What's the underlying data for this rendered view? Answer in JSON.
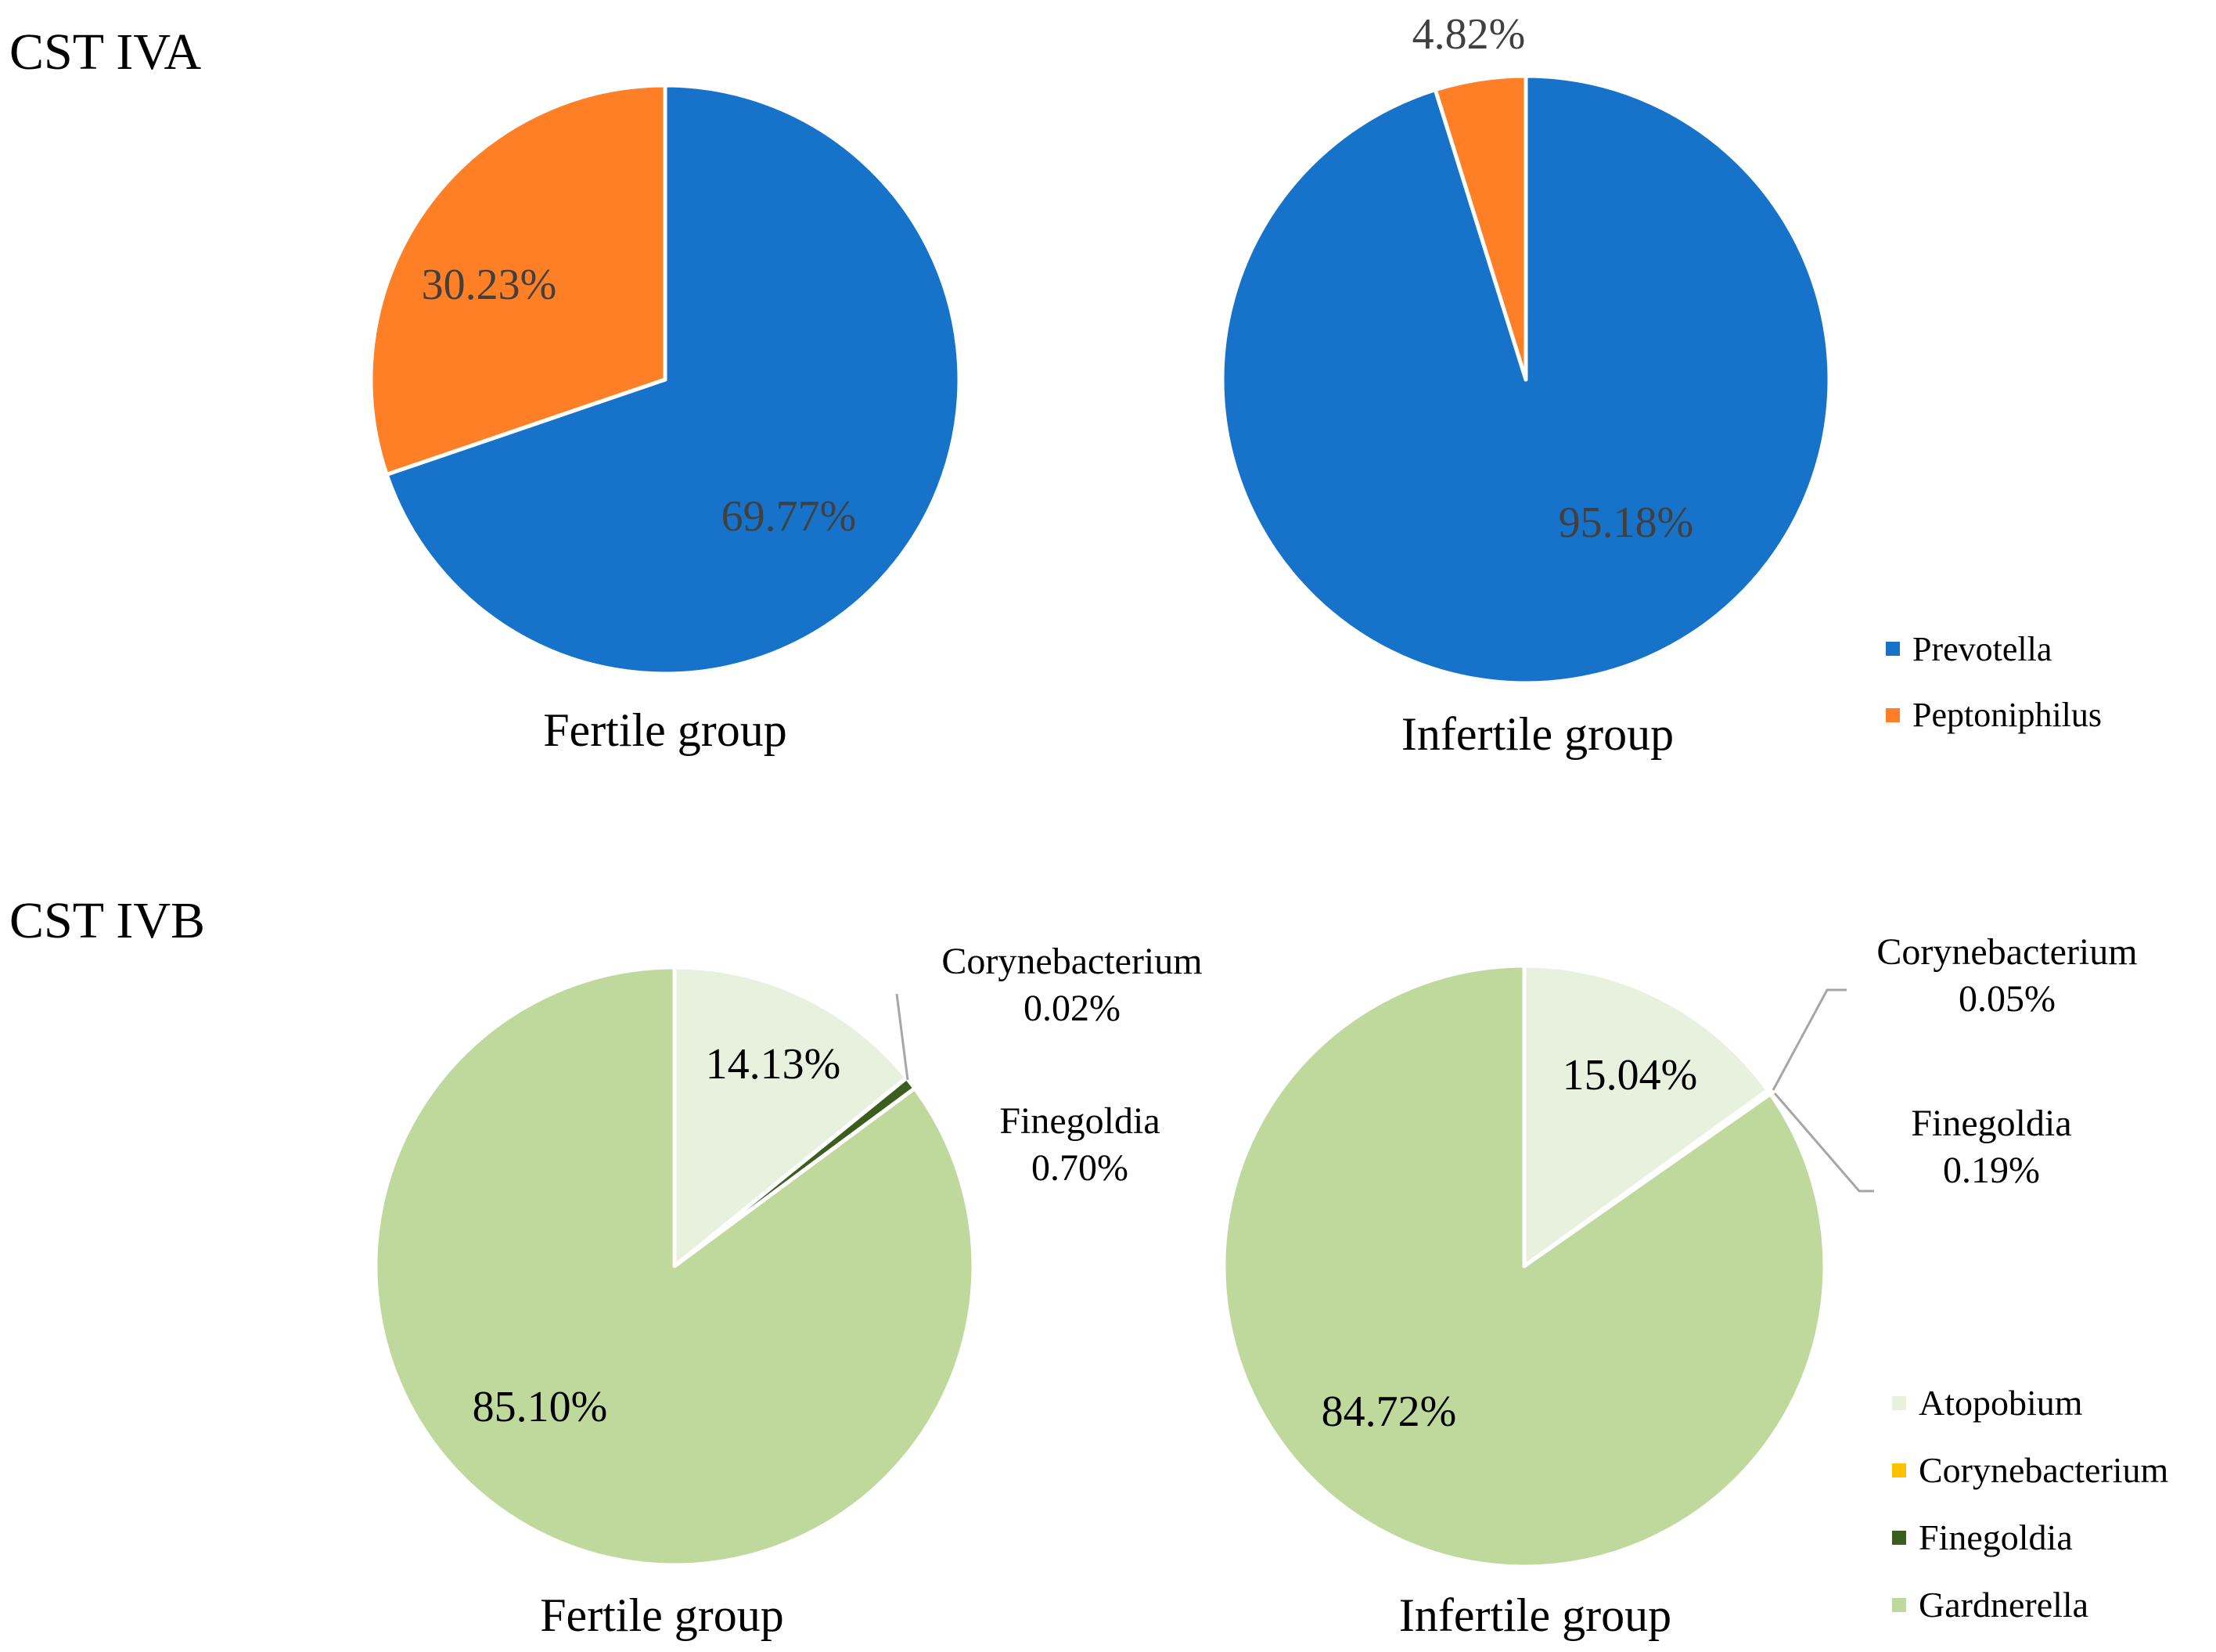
{
  "panels": [
    {
      "id": "iva",
      "title": "CST IVA",
      "legend": [
        {
          "name": "Prevotella",
          "color": "#1773C9"
        },
        {
          "name": "Peptoniphilus",
          "color": "#FF7F27"
        }
      ],
      "charts": [
        {
          "label": "Fertile group",
          "slices": [
            {
              "name": "Prevotella",
              "value": 69.77,
              "label": "69.77%",
              "color": "#1773C9",
              "label_mode": "inside",
              "text_color": "#404040"
            },
            {
              "name": "Peptoniphilus",
              "value": 30.23,
              "label": "30.23%",
              "color": "#FF7F27",
              "label_mode": "inside",
              "text_color": "#404040"
            }
          ]
        },
        {
          "label": "Infertile group",
          "slices": [
            {
              "name": "Prevotella",
              "value": 95.18,
              "label": "95.18%",
              "color": "#1773C9",
              "label_mode": "inside",
              "text_color": "#404040"
            },
            {
              "name": "Peptoniphilus",
              "value": 4.82,
              "label": "4.82%",
              "color": "#FF7F27",
              "label_mode": "outside",
              "text_color": "#404040"
            }
          ]
        }
      ]
    },
    {
      "id": "ivb",
      "title": "CST IVB",
      "legend": [
        {
          "name": "Atopobium",
          "color": "#E8F0DE"
        },
        {
          "name": "Corynebacterium",
          "color": "#FFC000"
        },
        {
          "name": "Finegoldia",
          "color": "#3B5E1F"
        },
        {
          "name": "Gardnerella",
          "color": "#BFD89C"
        }
      ],
      "charts": [
        {
          "label": "Fertile group",
          "slices": [
            {
              "name": "Atopobium",
              "value": 14.13,
              "label": "14.13%",
              "color": "#E8F0DE",
              "label_mode": "inside",
              "text_color": "#000000"
            },
            {
              "name": "Corynebacterium",
              "value": 0.02,
              "label": "0.02%",
              "color": "#FFC000",
              "label_mode": "callout",
              "text_color": "#000000"
            },
            {
              "name": "Finegoldia",
              "value": 0.7,
              "label": "0.70%",
              "color": "#3B5E1F",
              "label_mode": "callout",
              "text_color": "#000000"
            },
            {
              "name": "Gardnerella",
              "value": 85.1,
              "label": "85.10%",
              "color": "#BFD89C",
              "label_mode": "inside",
              "text_color": "#000000"
            }
          ]
        },
        {
          "label": "Infertile group",
          "slices": [
            {
              "name": "Atopobium",
              "value": 15.04,
              "label": "15.04%",
              "color": "#E8F0DE",
              "label_mode": "inside",
              "text_color": "#000000"
            },
            {
              "name": "Corynebacterium",
              "value": 0.05,
              "label": "0.05%",
              "color": "#FFC000",
              "label_mode": "callout",
              "text_color": "#000000"
            },
            {
              "name": "Finegoldia",
              "value": 0.19,
              "label": "0.19%",
              "color": "#3B5E1F",
              "label_mode": "callout",
              "text_color": "#000000"
            },
            {
              "name": "Gardnerella",
              "value": 84.72,
              "label": "84.72%",
              "color": "#BFD89C",
              "label_mode": "inside",
              "text_color": "#000000"
            }
          ]
        }
      ]
    }
  ],
  "chart_data": [
    {
      "type": "pie",
      "title": "CST IVA — Fertile group",
      "categories": [
        "Prevotella",
        "Peptoniphilus"
      ],
      "values": [
        69.77,
        30.23
      ]
    },
    {
      "type": "pie",
      "title": "CST IVA — Infertile group",
      "categories": [
        "Prevotella",
        "Peptoniphilus"
      ],
      "values": [
        95.18,
        4.82
      ]
    },
    {
      "type": "pie",
      "title": "CST IVB — Fertile group",
      "categories": [
        "Atopobium",
        "Corynebacterium",
        "Finegoldia",
        "Gardnerella"
      ],
      "values": [
        14.13,
        0.02,
        0.7,
        85.1
      ]
    },
    {
      "type": "pie",
      "title": "CST IVB — Infertile group",
      "categories": [
        "Atopobium",
        "Corynebacterium",
        "Finegoldia",
        "Gardnerella"
      ],
      "values": [
        15.04,
        0.05,
        0.19,
        84.72
      ]
    }
  ]
}
